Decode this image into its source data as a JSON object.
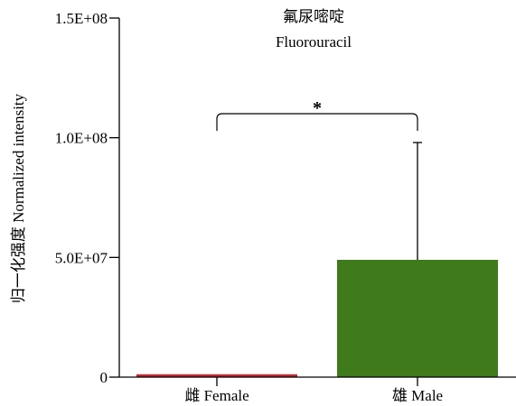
{
  "chart_data": {
    "type": "bar",
    "title": "氟尿嘧啶",
    "subtitle": "Fluorouracil",
    "ylabel": "归一化强度 Normalized intensity",
    "xlabel": "",
    "categories": [
      "雌 Female",
      "雄 Male"
    ],
    "values": [
      1200000,
      49000000
    ],
    "error_upper": [
      null,
      98000000
    ],
    "ylim": [
      0,
      150000000
    ],
    "yticks": [
      0,
      50000000,
      100000000,
      150000000
    ],
    "ytick_labels": [
      "0",
      "5.0E+07",
      "1.0E+08",
      "1.5E+08"
    ],
    "bar_colors": [
      "#c0282f",
      "#3f7a1b"
    ],
    "significance": {
      "between": [
        0,
        1
      ],
      "label": "*"
    },
    "grid": false,
    "legend": "none"
  }
}
